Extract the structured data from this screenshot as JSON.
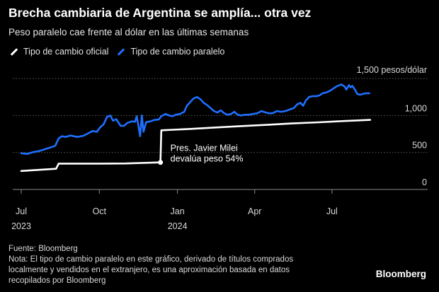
{
  "title": "Brecha cambiaria de Argentina se amplía... otra vez",
  "subtitle": "Peso paralelo cae frente al dólar en las últimas semanas",
  "legend": {
    "official": "Tipo de cambio oficial",
    "parallel": "Tipo de cambio paralelo"
  },
  "colors": {
    "official": "#ffffff",
    "parallel": "#1f6fff",
    "background": "#000000",
    "grid": "#555555"
  },
  "chart_data": {
    "type": "line",
    "title": "Brecha cambiaria de Argentina se amplía... otra vez",
    "subtitle": "Peso paralelo cae frente al dólar en las últimas semanas",
    "y_unit_label": "1,500 pesos/dólar",
    "ylim": [
      0,
      1500
    ],
    "y_ticks": [
      {
        "value": 0,
        "label": "0"
      },
      {
        "value": 500,
        "label": "500"
      },
      {
        "value": 1000,
        "label": "1,000"
      },
      {
        "value": 1500,
        "label": ""
      }
    ],
    "x_ticks": [
      {
        "date": "2023-07-01",
        "label": "Jul",
        "year": "2023"
      },
      {
        "date": "2023-10-01",
        "label": "Oct",
        "year": ""
      },
      {
        "date": "2024-01-01",
        "label": "Jan",
        "year": "2024"
      },
      {
        "date": "2024-04-01",
        "label": "Apr",
        "year": ""
      },
      {
        "date": "2024-07-01",
        "label": "Jul",
        "year": ""
      }
    ],
    "xlim": [
      "2023-07-01",
      "2024-08-31"
    ],
    "grid": true,
    "legend_position": "top-left",
    "series": [
      {
        "name": "Tipo de cambio oficial",
        "color": "#ffffff",
        "points": [
          [
            "2023-07-01",
            250
          ],
          [
            "2023-08-11",
            280
          ],
          [
            "2023-08-14",
            350
          ],
          [
            "2023-10-01",
            350
          ],
          [
            "2023-11-01",
            352
          ],
          [
            "2023-12-12",
            366
          ],
          [
            "2023-12-13",
            800
          ],
          [
            "2024-01-15",
            818
          ],
          [
            "2024-02-15",
            838
          ],
          [
            "2024-03-15",
            856
          ],
          [
            "2024-04-15",
            873
          ],
          [
            "2024-05-15",
            892
          ],
          [
            "2024-06-15",
            908
          ],
          [
            "2024-07-15",
            925
          ],
          [
            "2024-08-15",
            940
          ]
        ]
      },
      {
        "name": "Tipo de cambio paralelo",
        "color": "#1f6fff",
        "points": [
          [
            "2023-07-01",
            490
          ],
          [
            "2023-07-08",
            480
          ],
          [
            "2023-07-15",
            505
          ],
          [
            "2023-07-22",
            520
          ],
          [
            "2023-07-29",
            545
          ],
          [
            "2023-08-05",
            570
          ],
          [
            "2023-08-10",
            590
          ],
          [
            "2023-08-14",
            690
          ],
          [
            "2023-08-18",
            720
          ],
          [
            "2023-08-22",
            710
          ],
          [
            "2023-08-28",
            730
          ],
          [
            "2023-09-05",
            710
          ],
          [
            "2023-09-12",
            725
          ],
          [
            "2023-09-18",
            760
          ],
          [
            "2023-09-23",
            790
          ],
          [
            "2023-09-28",
            780
          ],
          [
            "2023-10-02",
            840
          ],
          [
            "2023-10-06",
            880
          ],
          [
            "2023-10-10",
            980
          ],
          [
            "2023-10-14",
            1000
          ],
          [
            "2023-10-17",
            930
          ],
          [
            "2023-10-21",
            950
          ],
          [
            "2023-10-26",
            860
          ],
          [
            "2023-10-30",
            860
          ],
          [
            "2023-11-03",
            900
          ],
          [
            "2023-11-08",
            920
          ],
          [
            "2023-11-12",
            915
          ],
          [
            "2023-11-14",
            990
          ],
          [
            "2023-11-16",
            860
          ],
          [
            "2023-11-18",
            720
          ],
          [
            "2023-11-20",
            1000
          ],
          [
            "2023-11-22",
            780
          ],
          [
            "2023-11-25",
            910
          ],
          [
            "2023-11-30",
            920
          ],
          [
            "2023-12-05",
            940
          ],
          [
            "2023-12-10",
            945
          ],
          [
            "2023-12-13",
            990
          ],
          [
            "2023-12-18",
            1020
          ],
          [
            "2023-12-22",
            1000
          ],
          [
            "2023-12-26",
            990
          ],
          [
            "2023-12-30",
            1010
          ],
          [
            "2024-01-04",
            1020
          ],
          [
            "2024-01-09",
            1050
          ],
          [
            "2024-01-12",
            1130
          ],
          [
            "2024-01-16",
            1180
          ],
          [
            "2024-01-20",
            1230
          ],
          [
            "2024-01-24",
            1250
          ],
          [
            "2024-01-28",
            1220
          ],
          [
            "2024-02-01",
            1170
          ],
          [
            "2024-02-05",
            1140
          ],
          [
            "2024-02-09",
            1100
          ],
          [
            "2024-02-13",
            1060
          ],
          [
            "2024-02-17",
            1040
          ],
          [
            "2024-02-21",
            1070
          ],
          [
            "2024-02-25",
            1030
          ],
          [
            "2024-02-29",
            1010
          ],
          [
            "2024-03-04",
            1020
          ],
          [
            "2024-03-08",
            1050
          ],
          [
            "2024-03-12",
            1010
          ],
          [
            "2024-03-16",
            1000
          ],
          [
            "2024-03-20",
            1010
          ],
          [
            "2024-03-25",
            1010
          ],
          [
            "2024-03-30",
            1020
          ],
          [
            "2024-04-04",
            1030
          ],
          [
            "2024-04-09",
            1060
          ],
          [
            "2024-04-14",
            1040
          ],
          [
            "2024-04-18",
            1030
          ],
          [
            "2024-04-22",
            1030
          ],
          [
            "2024-04-27",
            1060
          ],
          [
            "2024-05-02",
            1050
          ],
          [
            "2024-05-07",
            1060
          ],
          [
            "2024-05-12",
            1080
          ],
          [
            "2024-05-17",
            1100
          ],
          [
            "2024-05-21",
            1150
          ],
          [
            "2024-05-25",
            1170
          ],
          [
            "2024-05-28",
            1130
          ],
          [
            "2024-05-31",
            1200
          ],
          [
            "2024-06-04",
            1250
          ],
          [
            "2024-06-08",
            1260
          ],
          [
            "2024-06-12",
            1260
          ],
          [
            "2024-06-16",
            1270
          ],
          [
            "2024-06-20",
            1300
          ],
          [
            "2024-06-24",
            1310
          ],
          [
            "2024-06-28",
            1330
          ],
          [
            "2024-07-02",
            1360
          ],
          [
            "2024-07-06",
            1390
          ],
          [
            "2024-07-10",
            1410
          ],
          [
            "2024-07-12",
            1420
          ],
          [
            "2024-07-16",
            1390
          ],
          [
            "2024-07-18",
            1350
          ],
          [
            "2024-07-21",
            1410
          ],
          [
            "2024-07-23",
            1380
          ],
          [
            "2024-07-25",
            1400
          ],
          [
            "2024-07-28",
            1350
          ],
          [
            "2024-07-31",
            1290
          ],
          [
            "2024-08-03",
            1280
          ],
          [
            "2024-08-06",
            1290
          ],
          [
            "2024-08-10",
            1300
          ],
          [
            "2024-08-14",
            1300
          ]
        ]
      }
    ],
    "annotation": {
      "date": "2023-12-12",
      "value": 366,
      "line1": "Pres. Javier Milei",
      "line2": "devalúa peso 54%"
    }
  },
  "footer": {
    "source": "Fuente: Bloomberg",
    "note": "Nota: El tipo de cambio paralelo en este gráfico, derivado de títulos comprados localmente y vendidos en el extranjero, es una aproximación basada en datos recopilados por Bloomberg"
  },
  "brand": "Bloomberg"
}
